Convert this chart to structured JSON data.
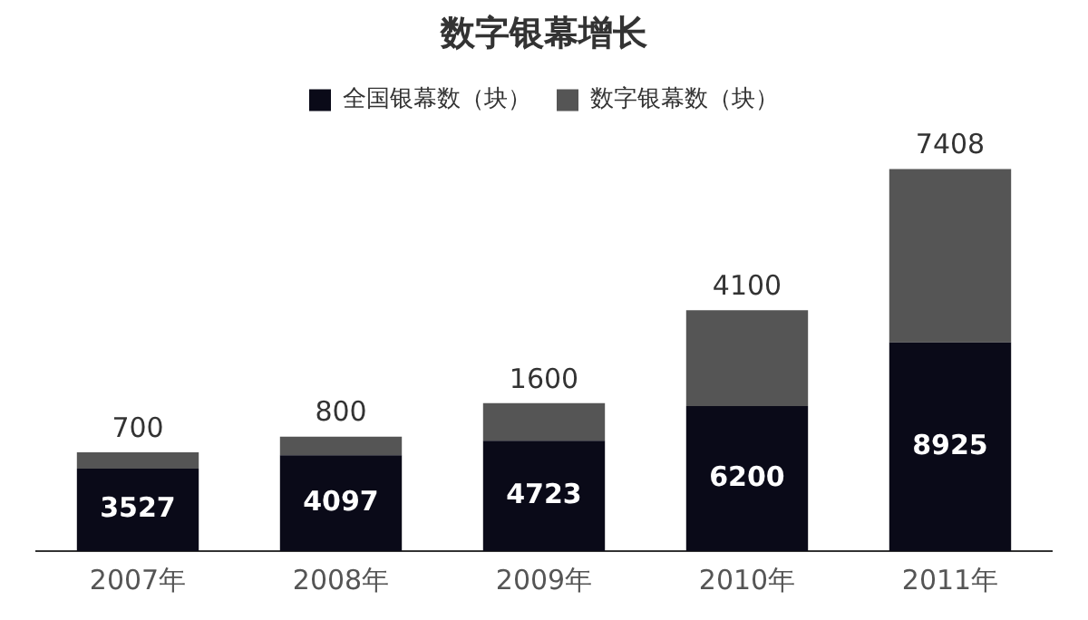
{
  "chart_data": {
    "type": "bar",
    "title": "数字银幕增长",
    "stacked": true,
    "legend": "top",
    "data_labels": true,
    "grid": false,
    "categories": [
      "2007年",
      "2008年",
      "2009年",
      "2010年",
      "2011年"
    ],
    "series": [
      {
        "name": "全国银幕数（块）",
        "color": "#0a0a18",
        "values": [
          3527,
          4097,
          4723,
          6200,
          8925
        ]
      },
      {
        "name": "数字银幕数（块）",
        "color": "#555555",
        "values": [
          700,
          800,
          1600,
          4100,
          7408
        ]
      }
    ]
  }
}
